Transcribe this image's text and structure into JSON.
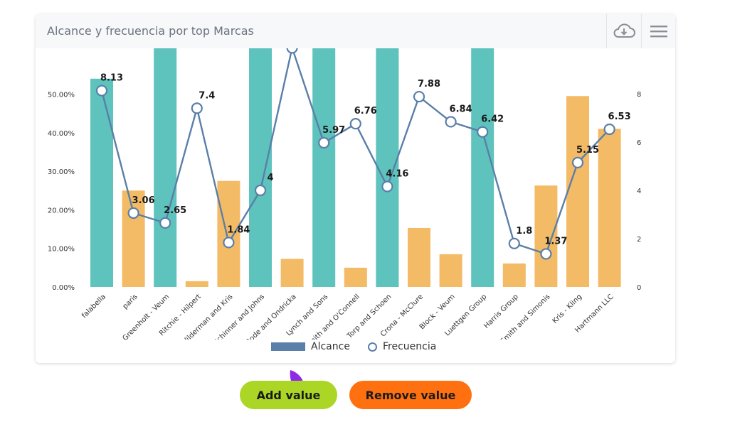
{
  "card": {
    "title": "Alcance y frecuencia por top Marcas"
  },
  "header": {
    "download_icon": "cloud-download-icon",
    "menu_icon": "hamburger-menu-icon"
  },
  "buttons": {
    "add_label": "Add value",
    "remove_label": "Remove value"
  },
  "colors": {
    "bar_teal": "#5ec3bd",
    "bar_orange": "#f3bb65",
    "line": "#5a7fa8",
    "add_button": "#acd626",
    "remove_button": "#ff7010",
    "legend_bar": "#5a7fa8"
  },
  "chart_data": {
    "type": "bar+line",
    "categories": [
      "falabella",
      "paris",
      "Greenholt - Veum",
      "Ritchie - Hilpert",
      "Wilderman and Kris",
      "Schinner and Johns",
      "Bode and Ondricka",
      "Lynch and Sons",
      "Smith and O'Connell",
      "Torp and Schoen",
      "Crona - McClure",
      "Block - Veum",
      "Luettgen Group",
      "Harris Group",
      "Smith and Simonis",
      "Kris - Kling",
      "Hartmann LLC"
    ],
    "series": [
      {
        "name": "Alcance",
        "type": "bar",
        "axis": "left",
        "values": [
          54.0,
          25.0,
          62.0,
          1.5,
          27.5,
          62.0,
          7.3,
          62.0,
          5.0,
          62.0,
          15.3,
          8.5,
          62.0,
          6.1,
          26.3,
          49.5,
          41.0
        ],
        "colors": [
          "#5ec3bd",
          "#f3bb65",
          "#5ec3bd",
          "#f3bb65",
          "#f3bb65",
          "#5ec3bd",
          "#f3bb65",
          "#5ec3bd",
          "#f3bb65",
          "#5ec3bd",
          "#f3bb65",
          "#f3bb65",
          "#5ec3bd",
          "#f3bb65",
          "#f3bb65",
          "#f3bb65",
          "#f3bb65"
        ]
      },
      {
        "name": "Frecuencia",
        "type": "line",
        "axis": "right",
        "values": [
          8.13,
          3.06,
          2.65,
          7.4,
          1.84,
          4,
          9.9,
          5.97,
          6.76,
          4.16,
          7.88,
          6.84,
          6.42,
          1.8,
          1.37,
          5.15,
          6.53
        ],
        "labels": [
          "8.13",
          "3.06",
          "2.65",
          "7.4",
          "1.84",
          "4",
          "",
          "5.97",
          "6.76",
          "4.16",
          "7.88",
          "6.84",
          "6.42",
          "1.8",
          "1.37",
          "5.15",
          "6.53"
        ]
      }
    ],
    "y_left": {
      "ticks": [
        "0.00%",
        "10.00%",
        "20.00%",
        "30.00%",
        "40.00%",
        "50.00%"
      ],
      "range": [
        0,
        61
      ]
    },
    "y_right": {
      "ticks": [
        "0",
        "2",
        "4",
        "6",
        "8"
      ],
      "range": [
        0,
        9.85
      ]
    },
    "legend": {
      "position": "bottom",
      "items": [
        "Alcance",
        "Frecuencia"
      ]
    },
    "grid": false
  }
}
